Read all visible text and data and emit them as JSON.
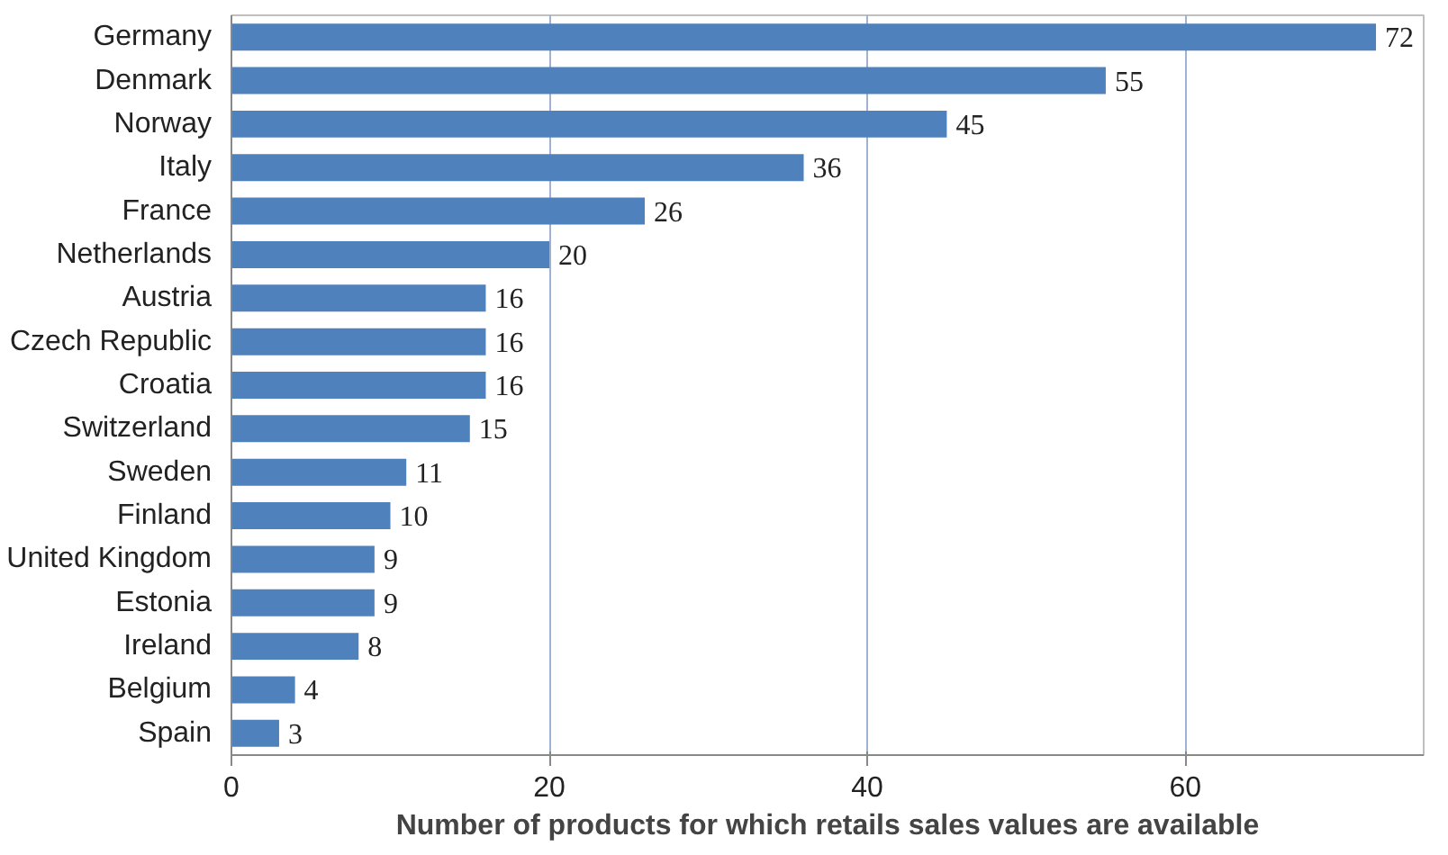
{
  "chart_data": {
    "type": "bar",
    "orientation": "horizontal",
    "xlabel": "Number of products for which retails sales values are available",
    "categories": [
      "Germany",
      "Denmark",
      "Norway",
      "Italy",
      "France",
      "Netherlands",
      "Austria",
      "Czech Republic",
      "Croatia",
      "Switzerland",
      "Sweden",
      "Finland",
      "United Kingdom",
      "Estonia",
      "Ireland",
      "Belgium",
      "Spain"
    ],
    "values": [
      72,
      55,
      45,
      36,
      26,
      20,
      16,
      16,
      16,
      15,
      11,
      10,
      9,
      9,
      8,
      4,
      3
    ],
    "color": "#4f81bd",
    "xlim": [
      0,
      75
    ],
    "xticks": [
      0,
      20,
      40,
      60
    ],
    "grid": "x",
    "data_labels": true
  }
}
